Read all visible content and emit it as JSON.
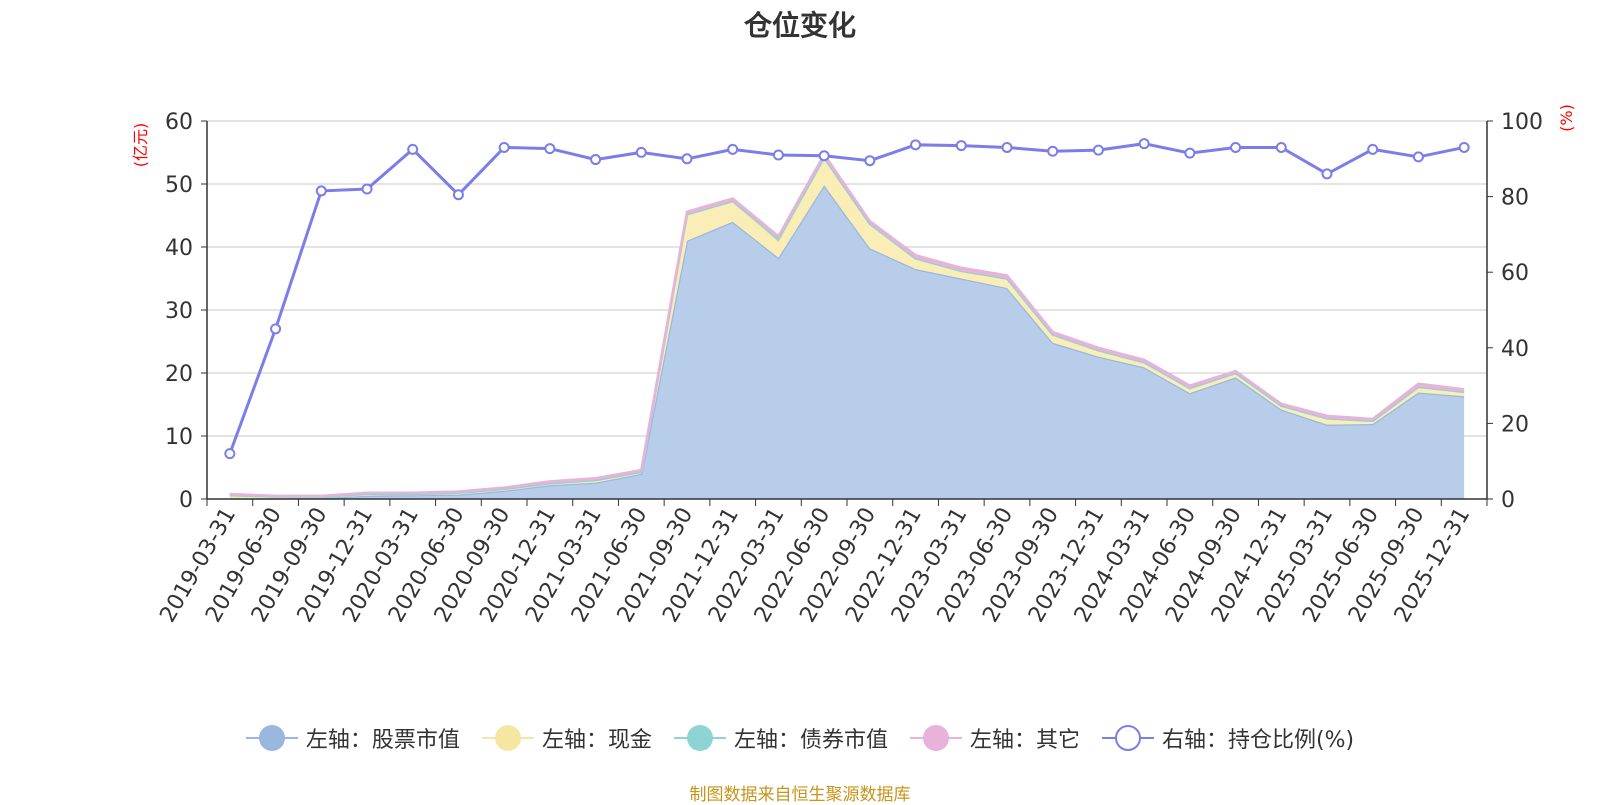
{
  "chart_data": {
    "type": "area",
    "title": "仓位变化",
    "y_left_unit": "(亿元)",
    "y_right_unit": "(%)",
    "y_left_ticks": [
      "0",
      "10",
      "20",
      "30",
      "40",
      "50",
      "60"
    ],
    "y_right_ticks": [
      "0",
      "20",
      "40",
      "60",
      "80",
      "100"
    ],
    "ylim_left": [
      0,
      60
    ],
    "ylim_right": [
      0,
      100
    ],
    "categories": [
      "2019-03-31",
      "2019-06-30",
      "2019-09-30",
      "2019-12-31",
      "2020-03-31",
      "2020-06-30",
      "2020-09-30",
      "2020-12-31",
      "2021-03-31",
      "2021-06-30",
      "2021-09-30",
      "2021-12-31",
      "2022-03-31",
      "2022-06-30",
      "2022-09-30",
      "2022-12-31",
      "2023-03-31",
      "2023-06-30",
      "2023-09-30",
      "2023-12-31",
      "2024-03-31",
      "2024-06-30",
      "2024-09-30",
      "2024-12-31",
      "2025-03-31",
      "2025-06-30",
      "2025-09-30",
      "2025-12-31"
    ],
    "series": [
      {
        "name": "左轴：股票市值",
        "axis": "left",
        "color": "#9ab7e1",
        "fill": "#b8cdea",
        "values": [
          0.1,
          0.1,
          0.2,
          0.5,
          0.6,
          0.7,
          1.3,
          2.2,
          2.6,
          4.0,
          41.0,
          44.0,
          38.3,
          49.8,
          39.8,
          36.5,
          35.0,
          33.5,
          24.8,
          22.6,
          20.9,
          16.8,
          19.3,
          14.2,
          11.8,
          11.9,
          16.9,
          16.3
        ]
      },
      {
        "name": "左轴：现金",
        "axis": "left",
        "color": "#f5e6a1",
        "fill": "#faedb6",
        "values": [
          0.5,
          0.3,
          0.2,
          0.3,
          0.2,
          0.3,
          0.3,
          0.3,
          0.4,
          0.3,
          4.2,
          3.3,
          2.6,
          4.4,
          3.9,
          1.7,
          1.2,
          1.5,
          1.3,
          1.0,
          0.8,
          0.8,
          0.7,
          0.6,
          1.0,
          0.5,
          0.9,
          0.7
        ]
      },
      {
        "name": "左轴：债券市值",
        "axis": "left",
        "color": "#8fd4d4",
        "fill": "#8fd4d4",
        "values": [
          0,
          0,
          0,
          0,
          0,
          0,
          0,
          0,
          0,
          0,
          0,
          0,
          0.4,
          0,
          0,
          0,
          0,
          0,
          0,
          0,
          0,
          0,
          0,
          0,
          0,
          0,
          0,
          0
        ]
      },
      {
        "name": "左轴：其它",
        "axis": "left",
        "color": "#e8b2da",
        "fill": "#e8b2da",
        "values": [
          0.2,
          0.1,
          0.1,
          0.2,
          0.2,
          0.2,
          0.2,
          0.3,
          0.3,
          0.3,
          0.4,
          0.4,
          0.4,
          0.5,
          0.4,
          0.5,
          0.5,
          0.5,
          0.4,
          0.4,
          0.4,
          0.4,
          0.3,
          0.3,
          0.4,
          0.3,
          0.5,
          0.4
        ]
      },
      {
        "name": "右轴：持仓比例(%)",
        "axis": "right",
        "color": "#7b7ee8",
        "values": [
          12.0,
          45.0,
          81.5,
          82.0,
          92.5,
          80.5,
          93.0,
          92.7,
          89.8,
          91.7,
          90.0,
          92.5,
          91.0,
          90.8,
          89.5,
          93.7,
          93.5,
          93.0,
          92.0,
          92.3,
          94.0,
          91.5,
          93.0,
          93.0,
          86.0,
          92.5,
          90.5,
          93.0
        ]
      }
    ]
  },
  "source_note": "制图数据来自恒生聚源数据库"
}
